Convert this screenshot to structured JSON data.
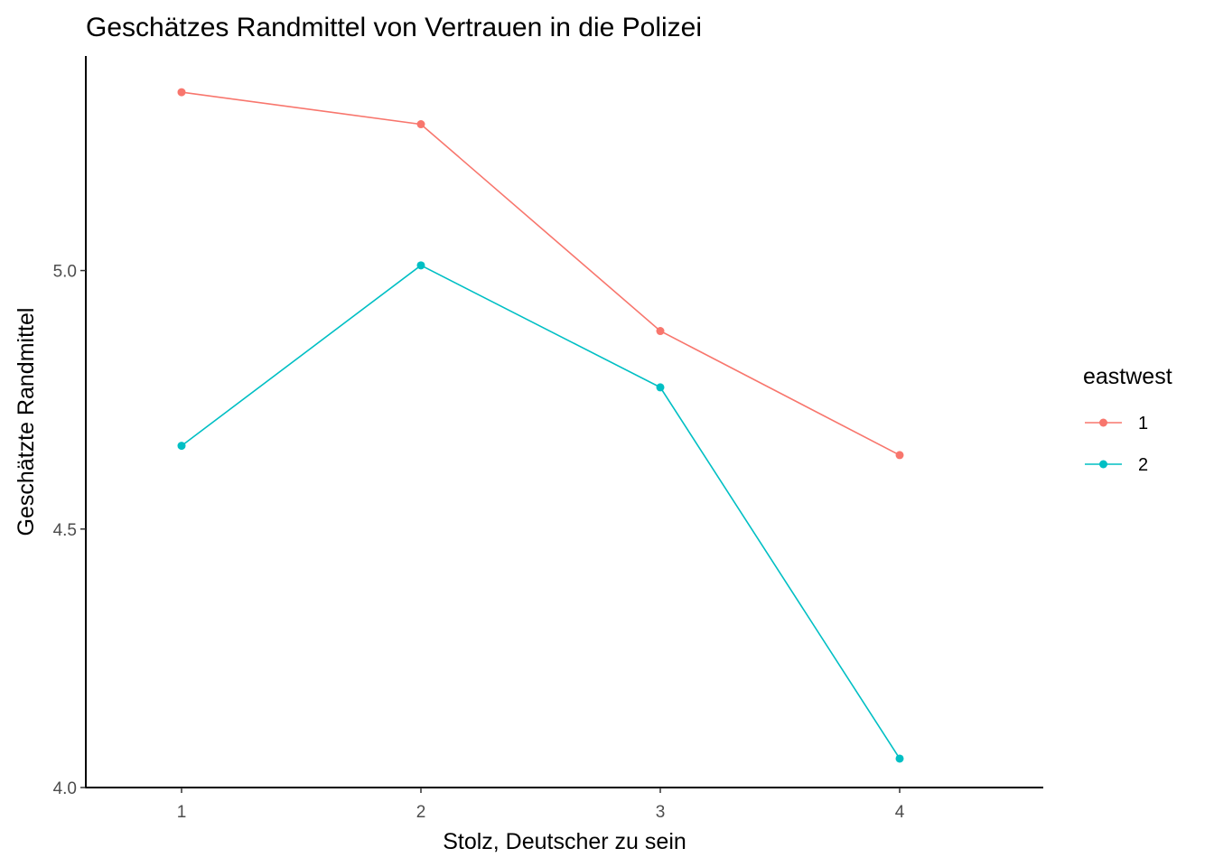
{
  "chart_data": {
    "type": "line",
    "title": "Geschätzes Randmittel von Vertrauen in die Polizei",
    "xlabel": "Stolz, Deutscher zu sein",
    "ylabel": "Geschätzte Randmittel",
    "x": [
      1,
      2,
      3,
      4
    ],
    "xticks": [
      "1",
      "2",
      "3",
      "4"
    ],
    "xlim": [
      0.6,
      4.6
    ],
    "yticks": [
      "4.0",
      "4.5",
      "5.0"
    ],
    "ylim": [
      4.0,
      5.415
    ],
    "grid": false,
    "legend_position": "right",
    "legend_title": "eastwest",
    "series": [
      {
        "name": "1",
        "color": "#F8766D",
        "values": [
          5.345,
          5.283,
          4.883,
          4.643
        ]
      },
      {
        "name": "2",
        "color": "#00BFC4",
        "values": [
          4.661,
          5.01,
          4.774,
          4.056
        ]
      }
    ]
  }
}
